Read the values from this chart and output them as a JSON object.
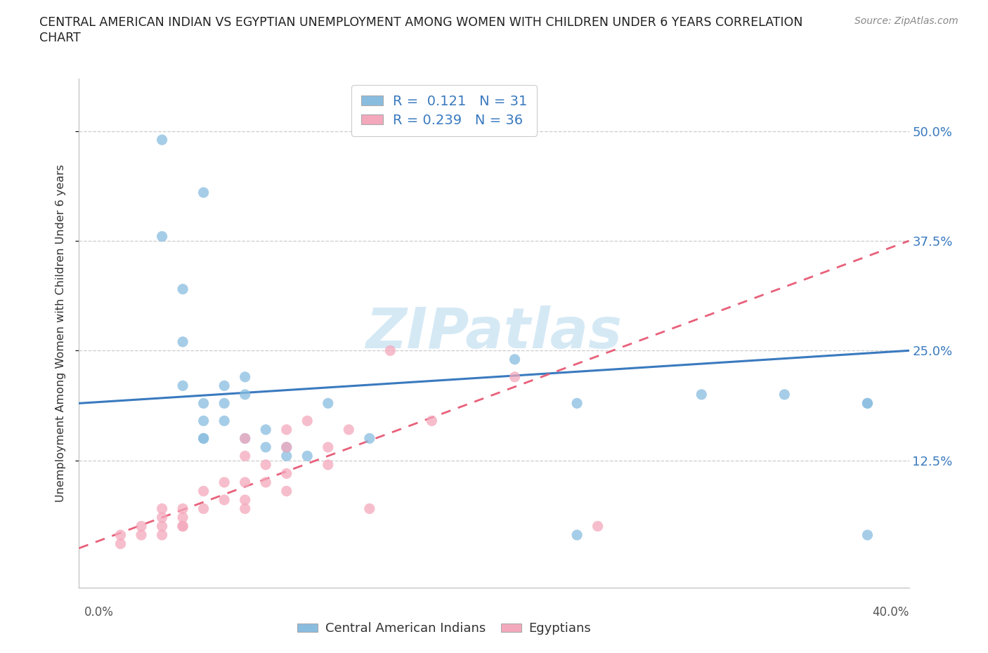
{
  "title_line1": "CENTRAL AMERICAN INDIAN VS EGYPTIAN UNEMPLOYMENT AMONG WOMEN WITH CHILDREN UNDER 6 YEARS CORRELATION",
  "title_line2": "CHART",
  "source": "Source: ZipAtlas.com",
  "ylabel": "Unemployment Among Women with Children Under 6 years",
  "ytick_labels": [
    "12.5%",
    "25.0%",
    "37.5%",
    "50.0%"
  ],
  "ytick_values": [
    0.125,
    0.25,
    0.375,
    0.5
  ],
  "xlim": [
    0.0,
    0.4
  ],
  "ylim": [
    -0.02,
    0.56
  ],
  "r_blue": 0.121,
  "n_blue": 31,
  "r_pink": 0.239,
  "n_pink": 36,
  "legend_label_blue": "Central American Indians",
  "legend_label_pink": "Egyptians",
  "blue_color": "#89bde0",
  "pink_color": "#f4a8bc",
  "blue_line_color": "#3a7abf",
  "pink_line_color": "#e8607a",
  "watermark_color": "#d5e9f5",
  "blue_scatter_x": [
    0.04,
    0.06,
    0.04,
    0.05,
    0.05,
    0.05,
    0.06,
    0.06,
    0.06,
    0.06,
    0.07,
    0.07,
    0.07,
    0.08,
    0.08,
    0.08,
    0.09,
    0.09,
    0.1,
    0.1,
    0.11,
    0.12,
    0.14,
    0.21,
    0.24,
    0.24,
    0.3,
    0.34,
    0.38,
    0.38,
    0.38
  ],
  "blue_scatter_y": [
    0.49,
    0.43,
    0.38,
    0.32,
    0.26,
    0.21,
    0.19,
    0.17,
    0.15,
    0.15,
    0.19,
    0.17,
    0.21,
    0.15,
    0.2,
    0.22,
    0.14,
    0.16,
    0.13,
    0.14,
    0.13,
    0.19,
    0.15,
    0.24,
    0.19,
    0.04,
    0.2,
    0.2,
    0.19,
    0.19,
    0.04
  ],
  "pink_scatter_x": [
    0.02,
    0.02,
    0.03,
    0.03,
    0.04,
    0.04,
    0.04,
    0.04,
    0.05,
    0.05,
    0.05,
    0.05,
    0.06,
    0.06,
    0.07,
    0.07,
    0.08,
    0.08,
    0.08,
    0.08,
    0.08,
    0.09,
    0.09,
    0.1,
    0.1,
    0.1,
    0.1,
    0.11,
    0.12,
    0.12,
    0.13,
    0.14,
    0.15,
    0.17,
    0.21,
    0.25
  ],
  "pink_scatter_y": [
    0.04,
    0.03,
    0.05,
    0.04,
    0.06,
    0.05,
    0.07,
    0.04,
    0.06,
    0.05,
    0.07,
    0.05,
    0.09,
    0.07,
    0.1,
    0.08,
    0.15,
    0.13,
    0.1,
    0.08,
    0.07,
    0.12,
    0.1,
    0.16,
    0.14,
    0.11,
    0.09,
    0.17,
    0.14,
    0.12,
    0.16,
    0.07,
    0.25,
    0.17,
    0.22,
    0.05
  ],
  "blue_trendline_x": [
    0.0,
    0.4
  ],
  "blue_trendline_y": [
    0.19,
    0.25
  ],
  "pink_trendline_x": [
    0.0,
    0.4
  ],
  "pink_trendline_y": [
    0.025,
    0.375
  ]
}
